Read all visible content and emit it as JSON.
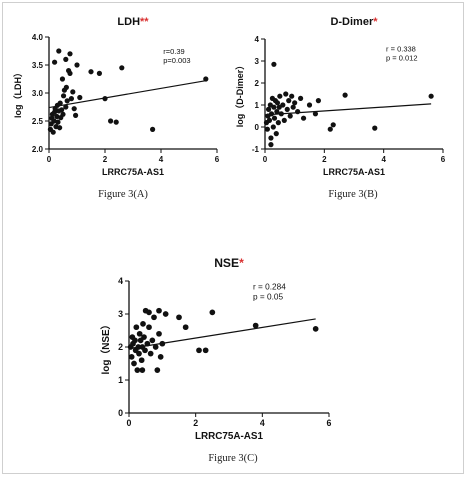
{
  "figure": {
    "captions": [
      "Figure 3(A)",
      "Figure 3(B)",
      "Figure 3(C)"
    ]
  },
  "chart_data": [
    {
      "type": "scatter",
      "title": "LDH",
      "title_mark": "**",
      "xlabel": "LRRC75A-AS1",
      "ylabel": "log（LDH）",
      "xlim": [
        0,
        6
      ],
      "ylim": [
        2.0,
        4.0
      ],
      "xticks": [
        0,
        2,
        4,
        6
      ],
      "yticks": [
        2.0,
        2.5,
        3.0,
        3.5,
        4.0
      ],
      "ytick_labels": [
        "2.0",
        "2.5",
        "3.0",
        "3.5",
        "4.0"
      ],
      "stats": [
        "r=0.39",
        "p=0.003"
      ],
      "regression": {
        "x": [
          0,
          5.6
        ],
        "y": [
          2.74,
          3.22
        ]
      },
      "points": [
        [
          0.05,
          2.35
        ],
        [
          0.08,
          2.45
        ],
        [
          0.1,
          2.55
        ],
        [
          0.12,
          2.62
        ],
        [
          0.15,
          2.3
        ],
        [
          0.18,
          2.5
        ],
        [
          0.2,
          2.66
        ],
        [
          0.22,
          2.72
        ],
        [
          0.25,
          2.4
        ],
        [
          0.28,
          2.58
        ],
        [
          0.3,
          2.78
        ],
        [
          0.32,
          2.48
        ],
        [
          0.35,
          2.68
        ],
        [
          0.38,
          2.38
        ],
        [
          0.4,
          2.82
        ],
        [
          0.42,
          2.56
        ],
        [
          0.45,
          2.7
        ],
        [
          0.48,
          3.25
        ],
        [
          0.5,
          2.62
        ],
        [
          0.52,
          2.95
        ],
        [
          0.55,
          3.05
        ],
        [
          0.6,
          2.75
        ],
        [
          0.62,
          3.1
        ],
        [
          0.65,
          2.86
        ],
        [
          0.7,
          3.4
        ],
        [
          0.75,
          3.35
        ],
        [
          0.8,
          2.9
        ],
        [
          0.85,
          3.02
        ],
        [
          0.9,
          2.72
        ],
        [
          0.95,
          2.6
        ],
        [
          0.2,
          3.55
        ],
        [
          0.35,
          3.75
        ],
        [
          0.6,
          3.6
        ],
        [
          0.75,
          3.7
        ],
        [
          1.0,
          3.5
        ],
        [
          1.5,
          3.38
        ],
        [
          1.8,
          3.35
        ],
        [
          1.1,
          2.92
        ],
        [
          2.0,
          2.9
        ],
        [
          2.2,
          2.5
        ],
        [
          2.4,
          2.48
        ],
        [
          2.6,
          3.45
        ],
        [
          3.7,
          2.35
        ],
        [
          5.6,
          3.25
        ]
      ]
    },
    {
      "type": "scatter",
      "title": "D-Dimer",
      "title_mark": "*",
      "xlabel": "LRRC75A-AS1",
      "ylabel": "log（D-Dimer）",
      "xlim": [
        0,
        6
      ],
      "ylim": [
        -1,
        4
      ],
      "xticks": [
        0,
        2,
        4,
        6
      ],
      "yticks": [
        -1,
        0,
        1,
        2,
        3,
        4
      ],
      "ytick_labels": [
        "-1",
        "0",
        "1",
        "2",
        "3",
        "4"
      ],
      "stats": [
        "r = 0.338",
        "p = 0.012"
      ],
      "regression": {
        "x": [
          0,
          5.6
        ],
        "y": [
          0.55,
          1.05
        ]
      },
      "points": [
        [
          0.05,
          0.2
        ],
        [
          0.08,
          -0.1
        ],
        [
          0.1,
          0.5
        ],
        [
          0.12,
          0.8
        ],
        [
          0.15,
          0.3
        ],
        [
          0.18,
          1.0
        ],
        [
          0.2,
          -0.5
        ],
        [
          0.22,
          0.6
        ],
        [
          0.25,
          1.3
        ],
        [
          0.28,
          0.0
        ],
        [
          0.3,
          0.9
        ],
        [
          0.32,
          0.4
        ],
        [
          0.35,
          1.2
        ],
        [
          0.38,
          -0.3
        ],
        [
          0.4,
          0.7
        ],
        [
          0.42,
          1.1
        ],
        [
          0.45,
          0.2
        ],
        [
          0.48,
          0.9
        ],
        [
          0.5,
          1.4
        ],
        [
          0.55,
          0.6
        ],
        [
          0.6,
          1.0
        ],
        [
          0.65,
          0.3
        ],
        [
          0.7,
          1.5
        ],
        [
          0.75,
          0.8
        ],
        [
          0.8,
          1.2
        ],
        [
          0.85,
          0.5
        ],
        [
          0.9,
          1.4
        ],
        [
          0.95,
          0.9
        ],
        [
          1.0,
          1.1
        ],
        [
          1.1,
          0.7
        ],
        [
          1.2,
          1.3
        ],
        [
          1.3,
          0.4
        ],
        [
          1.5,
          1.0
        ],
        [
          1.7,
          0.6
        ],
        [
          1.8,
          1.2
        ],
        [
          0.3,
          2.85
        ],
        [
          0.2,
          -0.8
        ],
        [
          2.3,
          0.1
        ],
        [
          2.7,
          1.45
        ],
        [
          2.2,
          -0.1
        ],
        [
          3.7,
          -0.05
        ],
        [
          5.6,
          1.4
        ]
      ]
    },
    {
      "type": "scatter",
      "title": "NSE",
      "title_mark": "*",
      "xlabel": "LRRC75A-AS1",
      "ylabel": "log（NSE）",
      "xlim": [
        0,
        6
      ],
      "ylim": [
        0,
        4
      ],
      "xticks": [
        0,
        2,
        4,
        6
      ],
      "yticks": [
        0,
        1,
        2,
        3,
        4
      ],
      "ytick_labels": [
        "0",
        "1",
        "2",
        "3",
        "4"
      ],
      "stats": [
        "r = 0.284",
        "p = 0.05"
      ],
      "regression": {
        "x": [
          0,
          5.6
        ],
        "y": [
          1.95,
          2.85
        ]
      },
      "points": [
        [
          0.05,
          2.0
        ],
        [
          0.08,
          1.7
        ],
        [
          0.1,
          2.3
        ],
        [
          0.12,
          2.1
        ],
        [
          0.15,
          1.5
        ],
        [
          0.18,
          2.2
        ],
        [
          0.2,
          1.9
        ],
        [
          0.22,
          2.6
        ],
        [
          0.25,
          1.3
        ],
        [
          0.28,
          2.0
        ],
        [
          0.3,
          1.8
        ],
        [
          0.32,
          2.4
        ],
        [
          0.35,
          2.2
        ],
        [
          0.38,
          1.6
        ],
        [
          0.4,
          2.0
        ],
        [
          0.42,
          2.7
        ],
        [
          0.45,
          2.3
        ],
        [
          0.48,
          1.9
        ],
        [
          0.5,
          3.1
        ],
        [
          0.55,
          2.1
        ],
        [
          0.6,
          2.6
        ],
        [
          0.65,
          1.8
        ],
        [
          0.7,
          2.2
        ],
        [
          0.75,
          2.9
        ],
        [
          0.8,
          2.0
        ],
        [
          0.85,
          1.3
        ],
        [
          0.9,
          2.4
        ],
        [
          0.95,
          1.7
        ],
        [
          1.0,
          2.1
        ],
        [
          1.1,
          3.0
        ],
        [
          0.4,
          1.3
        ],
        [
          0.6,
          3.05
        ],
        [
          0.9,
          3.1
        ],
        [
          1.5,
          2.9
        ],
        [
          1.7,
          2.6
        ],
        [
          2.1,
          1.9
        ],
        [
          2.3,
          1.9
        ],
        [
          2.5,
          3.05
        ],
        [
          3.8,
          2.65
        ],
        [
          5.6,
          2.55
        ]
      ]
    }
  ]
}
